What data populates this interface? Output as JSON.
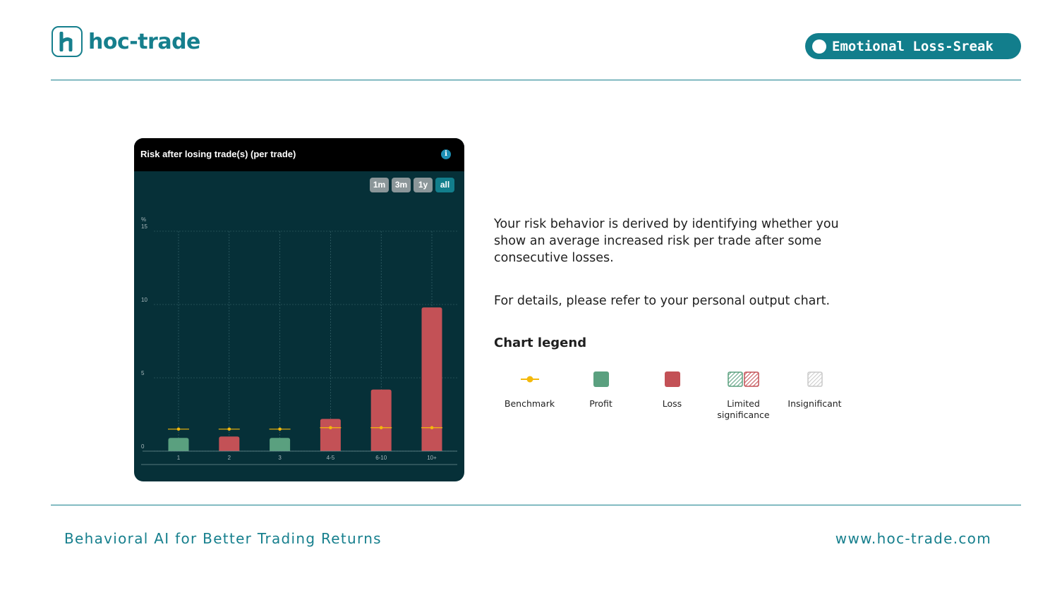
{
  "brand": {
    "name": "hoc-trade",
    "logo_icon": "h-logo-icon"
  },
  "badge": {
    "label": "Emotional Loss-Sreak"
  },
  "card": {
    "title": "Risk after losing trade(s) (per trade)",
    "info_icon": "info-icon",
    "ranges": [
      {
        "label": "1m",
        "active": false
      },
      {
        "label": "3m",
        "active": false
      },
      {
        "label": "1y",
        "active": false
      },
      {
        "label": "all",
        "active": true
      }
    ]
  },
  "chart_data": {
    "type": "bar",
    "ylabel": "%",
    "ylim": [
      0,
      15
    ],
    "yticks": [
      0,
      5,
      10,
      15
    ],
    "categories": [
      "1",
      "2",
      "3",
      "4-5",
      "6-10",
      "10+"
    ],
    "values": [
      0.9,
      1.0,
      0.9,
      2.2,
      4.2,
      9.8
    ],
    "status": [
      "profit",
      "loss",
      "profit",
      "loss",
      "loss",
      "loss"
    ],
    "benchmark": [
      1.5,
      1.5,
      1.5,
      1.6,
      1.6,
      1.6
    ],
    "grid": true,
    "colors": {
      "profit": "#5aa07f",
      "loss": "#c35156",
      "benchmark": "#f4b90b"
    }
  },
  "description": {
    "p1": "Your risk behavior is derived by identifying whether you show an average increased risk per trade after some consecutive losses.",
    "p2": "For details, please refer to your personal output chart."
  },
  "legend": {
    "title": "Chart legend",
    "items": [
      {
        "label": "Benchmark",
        "icon": "benchmark-icon"
      },
      {
        "label": "Profit",
        "icon": "profit-swatch"
      },
      {
        "label": "Loss",
        "icon": "loss-swatch"
      },
      {
        "label": "Limited significance",
        "icon": "limited-significance-swatch"
      },
      {
        "label": "Insignificant",
        "icon": "insignificant-swatch"
      }
    ]
  },
  "footer": {
    "tagline": "Behavioral AI for Better Trading Returns",
    "website": "www.hoc-trade.com"
  }
}
